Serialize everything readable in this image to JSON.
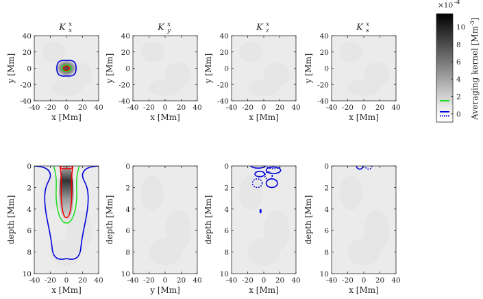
{
  "chart_data": [
    {
      "type": "heatmap",
      "title": {
        "symbol": "K",
        "sub": "x",
        "sup": "x"
      },
      "xlabel": "x [Mm]",
      "ylabel": "y [Mm]",
      "xlim": [
        -40,
        40
      ],
      "ylim": [
        -40,
        40
      ],
      "xticks": [
        -40,
        -20,
        0,
        20,
        40
      ],
      "yticks": [
        -40,
        -20,
        0,
        20,
        40
      ],
      "contours": [
        {
          "level": "0 (blue)",
          "color": "#0000dd",
          "style": "solid",
          "center": [
            0,
            0
          ],
          "radius": [
            12,
            9
          ],
          "note": "slightly squarish"
        },
        {
          "level": "1 (green)",
          "color": "#22dd22",
          "style": "solid",
          "center": [
            0,
            0
          ],
          "radius": [
            6,
            4
          ]
        },
        {
          "level": "max (red)",
          "color": "#ee0000",
          "style": "solid",
          "center": [
            0,
            0
          ],
          "radius": [
            3.5,
            2.8
          ]
        }
      ],
      "peak": {
        "x": 0,
        "y": 0,
        "value_e4": 11
      }
    },
    {
      "type": "heatmap",
      "title": {
        "symbol": "K",
        "sub": "y",
        "sup": "x"
      },
      "xlabel": "x [Mm]",
      "ylabel": "y [Mm]",
      "xlim": [
        -40,
        40
      ],
      "ylim": [
        -40,
        40
      ],
      "xticks": [
        -40,
        -20,
        0,
        20,
        40
      ],
      "yticks": [
        -40,
        -20,
        0,
        20,
        40
      ],
      "contours": []
    },
    {
      "type": "heatmap",
      "title": {
        "symbol": "K",
        "sub": "z",
        "sup": "x"
      },
      "xlabel": "x [Mm]",
      "ylabel": "y [Mm]",
      "xlim": [
        -40,
        40
      ],
      "ylim": [
        -40,
        40
      ],
      "xticks": [
        -40,
        -20,
        0,
        20,
        40
      ],
      "yticks": [
        -40,
        -20,
        0,
        20,
        40
      ],
      "contours": []
    },
    {
      "type": "heatmap",
      "title": {
        "symbol": "K",
        "sub": "s",
        "sup": "x"
      },
      "xlabel": "x [Mm]",
      "ylabel": "y [Mm]",
      "xlim": [
        -40,
        40
      ],
      "ylim": [
        -40,
        40
      ],
      "xticks": [
        -40,
        -20,
        0,
        20,
        40
      ],
      "yticks": [
        -40,
        -20,
        0,
        20,
        40
      ],
      "contours": []
    },
    {
      "type": "heatmap",
      "xlabel": "x [Mm]",
      "ylabel": "depth [Mm]",
      "xlim": [
        -40,
        40
      ],
      "ylim": [
        0,
        10
      ],
      "y_reversed": true,
      "xticks": [
        -40,
        -20,
        0,
        20,
        40
      ],
      "yticks": [
        0,
        2,
        4,
        6,
        8,
        10
      ],
      "contours": [
        {
          "level": "0 (blue)",
          "color": "#0000dd",
          "style": "solid",
          "shape": "flask",
          "surface_extent": [
            -40,
            40
          ],
          "bottom_depth": 8.8
        },
        {
          "level": "1 (green)",
          "color": "#22dd22",
          "style": "solid",
          "shape": "tube",
          "half_width_top": 16,
          "bottom_depth": 5.3
        },
        {
          "level": "max (red)",
          "color": "#ee0000",
          "style": "solid",
          "shape": "tube",
          "half_width_top": 8,
          "bottom_depth": 4.8
        }
      ],
      "peak": {
        "x": 0,
        "depth": 1.5
      }
    },
    {
      "type": "heatmap",
      "xlabel": "y [Mm]",
      "ylabel": "depth [Mm]",
      "xlim": [
        -40,
        40
      ],
      "ylim": [
        0,
        10
      ],
      "y_reversed": true,
      "xticks": [
        -40,
        -20,
        0,
        20,
        40
      ],
      "yticks": [
        0,
        2,
        4,
        6,
        8,
        10
      ],
      "contours": []
    },
    {
      "type": "heatmap",
      "xlabel": "x [Mm]",
      "ylabel": "depth [Mm]",
      "xlim": [
        -40,
        40
      ],
      "ylim": [
        0,
        10
      ],
      "y_reversed": true,
      "xticks": [
        -40,
        -20,
        0,
        20,
        40
      ],
      "yticks": [
        0,
        2,
        4,
        6,
        8,
        10
      ],
      "contours": [
        {
          "color": "#0000dd",
          "style": "solid",
          "center": [
            -7,
            -0.1
          ],
          "radius": [
            10,
            0.3
          ]
        },
        {
          "color": "#0000dd",
          "style": "dotted",
          "center": [
            12,
            -0.1
          ],
          "radius": [
            10,
            0.35
          ]
        },
        {
          "color": "#0000dd",
          "style": "solid",
          "center": [
            12,
            0.4
          ],
          "radius": [
            9,
            0.3
          ]
        },
        {
          "color": "#0000dd",
          "style": "solid",
          "center": [
            -5,
            0.75
          ],
          "radius": [
            6,
            0.25
          ]
        },
        {
          "color": "#0000dd",
          "style": "dotted",
          "center": [
            6,
            0.9
          ],
          "radius": [
            4.5,
            0.35
          ]
        },
        {
          "color": "#0000dd",
          "style": "dotted",
          "center": [
            -8,
            1.6
          ],
          "radius": [
            6,
            0.4
          ]
        },
        {
          "color": "#0000dd",
          "style": "solid",
          "center": [
            10,
            1.6
          ],
          "radius": [
            7,
            0.4
          ]
        },
        {
          "color": "#0000dd",
          "style": "solid",
          "center": [
            -4,
            4.2
          ],
          "radius": [
            0.6,
            0.15
          ]
        }
      ]
    },
    {
      "type": "heatmap",
      "xlabel": "x [Mm]",
      "ylabel": "depth [Mm]",
      "xlim": [
        -40,
        40
      ],
      "ylim": [
        0,
        10
      ],
      "y_reversed": true,
      "xticks": [
        -40,
        -20,
        0,
        20,
        40
      ],
      "yticks": [
        0,
        2,
        4,
        6,
        8,
        10
      ],
      "contours": [
        {
          "color": "#0000dd",
          "style": "solid",
          "center": [
            -5,
            0
          ],
          "radius": [
            4,
            0.3
          ]
        },
        {
          "color": "#0000dd",
          "style": "dotted",
          "center": [
            6,
            0
          ],
          "radius": [
            4,
            0.3
          ]
        }
      ]
    }
  ],
  "colorbar": {
    "label": "Averaging kernel [Mm",
    "label_sup": "-3",
    "label_close": "]",
    "exponent_label": "×10",
    "exponent_sup": "-4",
    "range": [
      0,
      11.5
    ],
    "ticks": [
      0,
      2,
      4,
      6,
      8,
      10
    ],
    "colormap": "gray light-to-dark",
    "contour_markers": [
      {
        "level": 1.5,
        "color": "#22dd22",
        "style": "solid"
      },
      {
        "level": 0,
        "color": "#0000dd",
        "style": "solid"
      },
      {
        "level": 0,
        "color": "#0000dd",
        "style": "dotted"
      }
    ]
  },
  "colors": {
    "background_field": "#ebebeb",
    "blue": "#0000dd",
    "green": "#22dd22",
    "red": "#ee0000"
  }
}
